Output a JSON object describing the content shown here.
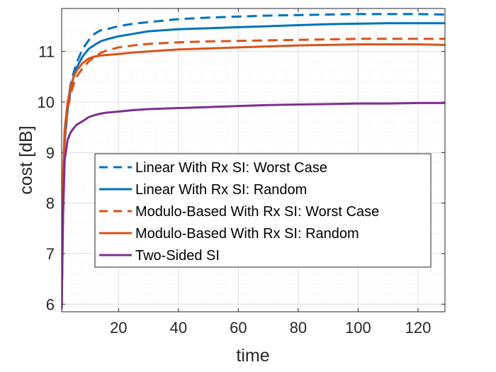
{
  "chart_data": {
    "type": "line",
    "title": "",
    "xlabel": "time",
    "ylabel": "cost [dB]",
    "xlim": [
      1,
      129
    ],
    "ylim": [
      5.85,
      11.85
    ],
    "xticks": [
      "20",
      "40",
      "60",
      "80",
      "100",
      "120"
    ],
    "yticks": [
      "6",
      "7",
      "8",
      "9",
      "10",
      "11"
    ],
    "grid": true,
    "minor_grid": true,
    "legend_position": "center-left",
    "series": [
      {
        "name": "Linear With Rx SI: Worst Case",
        "color": "#0072BD",
        "style": "dashed",
        "x": [
          1,
          1.5,
          2,
          3,
          4,
          5,
          6,
          8,
          10,
          12,
          14,
          16,
          20,
          25,
          30,
          40,
          50,
          60,
          70,
          80,
          90,
          100,
          110,
          120,
          129
        ],
        "y": [
          5.9,
          8.3,
          9.3,
          9.95,
          10.35,
          10.58,
          10.78,
          11.05,
          11.22,
          11.35,
          11.42,
          11.44,
          11.5,
          11.55,
          11.58,
          11.64,
          11.67,
          11.69,
          11.71,
          11.72,
          11.73,
          11.74,
          11.74,
          11.74,
          11.73
        ]
      },
      {
        "name": "Linear With Rx SI: Random",
        "color": "#0072BD",
        "style": "solid",
        "x": [
          1,
          1.5,
          2,
          3,
          4,
          5,
          6,
          8,
          10,
          12,
          14,
          16,
          20,
          25,
          30,
          40,
          50,
          60,
          70,
          80,
          90,
          100,
          110,
          120,
          129
        ],
        "y": [
          5.9,
          8.2,
          9.2,
          9.85,
          10.25,
          10.5,
          10.68,
          10.9,
          11.05,
          11.13,
          11.2,
          11.24,
          11.3,
          11.35,
          11.4,
          11.44,
          11.46,
          11.48,
          11.5,
          11.52,
          11.54,
          11.55,
          11.56,
          11.56,
          11.56
        ]
      },
      {
        "name": "Modulo-Based With Rx SI: Worst Case",
        "color": "#D95319",
        "style": "dashed",
        "x": [
          1,
          1.5,
          2,
          3,
          4,
          5,
          6,
          8,
          10,
          12,
          14,
          16,
          20,
          25,
          30,
          40,
          50,
          60,
          70,
          80,
          90,
          100,
          110,
          120,
          129
        ],
        "y": [
          5.9,
          8.4,
          9.3,
          9.85,
          10.15,
          10.35,
          10.5,
          10.67,
          10.8,
          10.9,
          10.97,
          11.02,
          11.08,
          11.12,
          11.15,
          11.18,
          11.2,
          11.21,
          11.22,
          11.23,
          11.24,
          11.25,
          11.25,
          11.25,
          11.25
        ]
      },
      {
        "name": "Modulo-Based With Rx SI: Random",
        "color": "#D95319",
        "style": "solid",
        "x": [
          1,
          1.5,
          2,
          3,
          4,
          5,
          6,
          8,
          10,
          12,
          14,
          16,
          20,
          25,
          30,
          40,
          50,
          60,
          70,
          80,
          90,
          100,
          110,
          120,
          129
        ],
        "y": [
          5.9,
          8.6,
          9.45,
          10.0,
          10.3,
          10.5,
          10.62,
          10.77,
          10.86,
          10.9,
          10.92,
          10.93,
          10.95,
          10.98,
          11.0,
          11.04,
          11.06,
          11.08,
          11.1,
          11.12,
          11.13,
          11.14,
          11.14,
          11.14,
          11.13
        ]
      },
      {
        "name": "Two-Sided SI",
        "color": "#7E2F8E",
        "style": "solid",
        "x": [
          1,
          1.5,
          2,
          3,
          4,
          5,
          6,
          8,
          10,
          12,
          14,
          16,
          20,
          25,
          30,
          40,
          50,
          60,
          70,
          80,
          90,
          100,
          110,
          120,
          129
        ],
        "y": [
          5.9,
          7.8,
          8.85,
          9.25,
          9.4,
          9.48,
          9.55,
          9.62,
          9.7,
          9.74,
          9.77,
          9.79,
          9.81,
          9.84,
          9.86,
          9.88,
          9.9,
          9.92,
          9.94,
          9.95,
          9.96,
          9.97,
          9.97,
          9.98,
          9.98
        ]
      }
    ]
  }
}
